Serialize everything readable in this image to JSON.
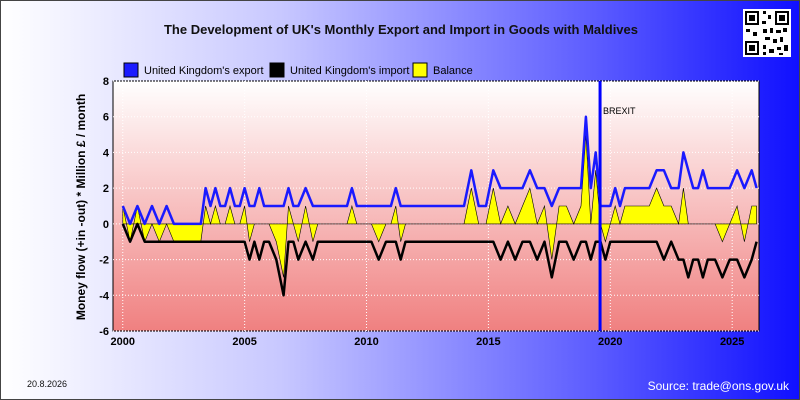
{
  "page": {
    "title": "The Development of UK's Monthly Export and Import in Goods with Maldives",
    "date": "20.8.2026",
    "source": "Source: trade@ons.gov.uk"
  },
  "chart_data": {
    "type": "line",
    "title": "The Development of UK's Monthly Export and Import in Goods with Maldives",
    "ylabel": "Money flow (+in -out) * Million £ / month",
    "xlabel": "",
    "xlim": [
      1999.6,
      2026.1
    ],
    "ylim": [
      -6,
      8
    ],
    "x_ticks": [
      "2000",
      "2005",
      "2010",
      "2015",
      "2020",
      "2025"
    ],
    "y_ticks": [
      "-6",
      "-4",
      "-2",
      "0",
      "2",
      "4",
      "6",
      "8"
    ],
    "grid": true,
    "legend_position": "top",
    "annotation": {
      "label": "BREXIT",
      "x": 2019.58
    },
    "colors": {
      "export": "#1a1aff",
      "import": "#000000",
      "balance": "#ffff00",
      "brexit": "#0000ff"
    },
    "series": [
      {
        "name": "United Kingdom's export",
        "x": [
          2000.0,
          2000.3,
          2000.6,
          2000.9,
          2001.2,
          2001.5,
          2001.8,
          2002.1,
          2002.5,
          2002.9,
          2003.2,
          2003.4,
          2003.6,
          2003.8,
          2004.0,
          2004.2,
          2004.4,
          2004.6,
          2004.8,
          2005.0,
          2005.2,
          2005.4,
          2005.6,
          2005.8,
          2006.0,
          2006.3,
          2006.6,
          2006.8,
          2007.0,
          2007.2,
          2007.5,
          2007.8,
          2008.0,
          2008.3,
          2008.6,
          2008.9,
          2009.2,
          2009.4,
          2009.6,
          2009.9,
          2010.2,
          2010.5,
          2010.8,
          2011.0,
          2011.2,
          2011.4,
          2011.6,
          2011.9,
          2012.2,
          2012.5,
          2012.8,
          2013.1,
          2013.4,
          2013.7,
          2014.0,
          2014.3,
          2014.6,
          2014.9,
          2015.2,
          2015.5,
          2015.8,
          2016.1,
          2016.4,
          2016.7,
          2017.0,
          2017.3,
          2017.6,
          2017.9,
          2018.2,
          2018.5,
          2018.8,
          2019.0,
          2019.2,
          2019.4,
          2019.6,
          2019.8,
          2020.0,
          2020.2,
          2020.4,
          2020.6,
          2020.8,
          2021.0,
          2021.3,
          2021.6,
          2021.9,
          2022.2,
          2022.5,
          2022.8,
          2023.0,
          2023.2,
          2023.4,
          2023.6,
          2023.8,
          2024.0,
          2024.3,
          2024.6,
          2024.9,
          2025.2,
          2025.5,
          2025.8,
          2026.0
        ],
        "values": [
          1,
          0,
          1,
          0,
          1,
          0,
          1,
          0,
          0,
          0,
          0,
          2,
          1,
          2,
          1,
          1,
          2,
          1,
          1,
          2,
          1,
          1,
          2,
          1,
          1,
          1,
          1,
          2,
          1,
          1,
          2,
          1,
          1,
          1,
          1,
          1,
          1,
          2,
          1,
          1,
          1,
          1,
          1,
          1,
          2,
          1,
          1,
          1,
          1,
          1,
          1,
          1,
          1,
          1,
          1,
          3,
          1,
          1,
          3,
          2,
          2,
          2,
          2,
          3,
          2,
          2,
          1,
          2,
          2,
          2,
          2,
          6,
          2,
          4,
          1,
          1,
          1,
          2,
          1,
          2,
          2,
          2,
          2,
          2,
          3,
          3,
          2,
          2,
          4,
          3,
          2,
          2,
          3,
          2,
          2,
          2,
          2,
          3,
          2,
          3,
          2
        ]
      },
      {
        "name": "United Kingdom's import",
        "x": [
          2000.0,
          2000.3,
          2000.6,
          2000.9,
          2001.2,
          2001.5,
          2001.8,
          2002.1,
          2002.5,
          2002.9,
          2003.2,
          2003.4,
          2003.6,
          2003.8,
          2004.0,
          2004.2,
          2004.4,
          2004.6,
          2004.8,
          2005.0,
          2005.2,
          2005.4,
          2005.6,
          2005.8,
          2006.0,
          2006.3,
          2006.6,
          2006.8,
          2007.0,
          2007.2,
          2007.5,
          2007.8,
          2008.0,
          2008.3,
          2008.6,
          2008.9,
          2009.2,
          2009.4,
          2009.6,
          2009.9,
          2010.2,
          2010.5,
          2010.8,
          2011.0,
          2011.2,
          2011.4,
          2011.6,
          2011.9,
          2012.2,
          2012.5,
          2012.8,
          2013.1,
          2013.4,
          2013.7,
          2014.0,
          2014.3,
          2014.6,
          2014.9,
          2015.2,
          2015.5,
          2015.8,
          2016.1,
          2016.4,
          2016.7,
          2017.0,
          2017.3,
          2017.6,
          2017.9,
          2018.2,
          2018.5,
          2018.8,
          2019.0,
          2019.2,
          2019.4,
          2019.6,
          2019.8,
          2020.0,
          2020.2,
          2020.4,
          2020.6,
          2020.8,
          2021.0,
          2021.3,
          2021.6,
          2021.9,
          2022.2,
          2022.5,
          2022.8,
          2023.0,
          2023.2,
          2023.4,
          2023.6,
          2023.8,
          2024.0,
          2024.3,
          2024.6,
          2024.9,
          2025.2,
          2025.5,
          2025.8,
          2026.0
        ],
        "values": [
          0,
          -1,
          0,
          -1,
          -1,
          -1,
          -1,
          -1,
          -1,
          -1,
          -1,
          -1,
          -1,
          -1,
          -1,
          -1,
          -1,
          -1,
          -1,
          -1,
          -2,
          -1,
          -2,
          -1,
          -1,
          -2,
          -4,
          -1,
          -1,
          -2,
          -1,
          -2,
          -1,
          -1,
          -1,
          -1,
          -1,
          -1,
          -1,
          -1,
          -1,
          -2,
          -1,
          -1,
          -1,
          -2,
          -1,
          -1,
          -1,
          -1,
          -1,
          -1,
          -1,
          -1,
          -1,
          -1,
          -1,
          -1,
          -1,
          -2,
          -1,
          -2,
          -1,
          -1,
          -2,
          -1,
          -3,
          -1,
          -1,
          -2,
          -1,
          -1,
          -2,
          -1,
          -1,
          -2,
          -1,
          -1,
          -1,
          -1,
          -1,
          -1,
          -1,
          -1,
          -1,
          -2,
          -1,
          -2,
          -2,
          -3,
          -2,
          -2,
          -3,
          -2,
          -2,
          -3,
          -2,
          -2,
          -3,
          -2,
          -1
        ]
      },
      {
        "name": "Balance",
        "x": [
          2000.0,
          2000.3,
          2000.6,
          2000.9,
          2001.2,
          2001.5,
          2001.8,
          2002.1,
          2002.5,
          2002.9,
          2003.2,
          2003.4,
          2003.6,
          2003.8,
          2004.0,
          2004.2,
          2004.4,
          2004.6,
          2004.8,
          2005.0,
          2005.2,
          2005.4,
          2005.6,
          2005.8,
          2006.0,
          2006.3,
          2006.6,
          2006.8,
          2007.0,
          2007.2,
          2007.5,
          2007.8,
          2008.0,
          2008.3,
          2008.6,
          2008.9,
          2009.2,
          2009.4,
          2009.6,
          2009.9,
          2010.2,
          2010.5,
          2010.8,
          2011.0,
          2011.2,
          2011.4,
          2011.6,
          2011.9,
          2012.2,
          2012.5,
          2012.8,
          2013.1,
          2013.4,
          2013.7,
          2014.0,
          2014.3,
          2014.6,
          2014.9,
          2015.2,
          2015.5,
          2015.8,
          2016.1,
          2016.4,
          2016.7,
          2017.0,
          2017.3,
          2017.6,
          2017.9,
          2018.2,
          2018.5,
          2018.8,
          2019.0,
          2019.2,
          2019.4,
          2019.6,
          2019.8,
          2020.0,
          2020.2,
          2020.4,
          2020.6,
          2020.8,
          2021.0,
          2021.3,
          2021.6,
          2021.9,
          2022.2,
          2022.5,
          2022.8,
          2023.0,
          2023.2,
          2023.4,
          2023.6,
          2023.8,
          2024.0,
          2024.3,
          2024.6,
          2024.9,
          2025.2,
          2025.5,
          2025.8,
          2026.0
        ],
        "values": [
          1,
          -1,
          1,
          -1,
          0,
          -1,
          0,
          -1,
          -1,
          -1,
          -1,
          1,
          0,
          1,
          0,
          0,
          1,
          0,
          0,
          1,
          -1,
          0,
          0,
          0,
          0,
          -1,
          -3,
          1,
          0,
          -1,
          1,
          -1,
          0,
          0,
          0,
          0,
          0,
          1,
          0,
          0,
          0,
          -1,
          0,
          0,
          1,
          -1,
          0,
          0,
          0,
          0,
          0,
          0,
          0,
          0,
          0,
          2,
          0,
          0,
          2,
          0,
          1,
          0,
          1,
          2,
          0,
          1,
          -2,
          1,
          1,
          0,
          1,
          5,
          0,
          3,
          0,
          -1,
          0,
          1,
          0,
          1,
          1,
          1,
          1,
          1,
          2,
          1,
          1,
          0,
          2,
          0,
          0,
          0,
          0,
          0,
          0,
          -1,
          0,
          1,
          -1,
          1,
          1
        ]
      }
    ]
  }
}
